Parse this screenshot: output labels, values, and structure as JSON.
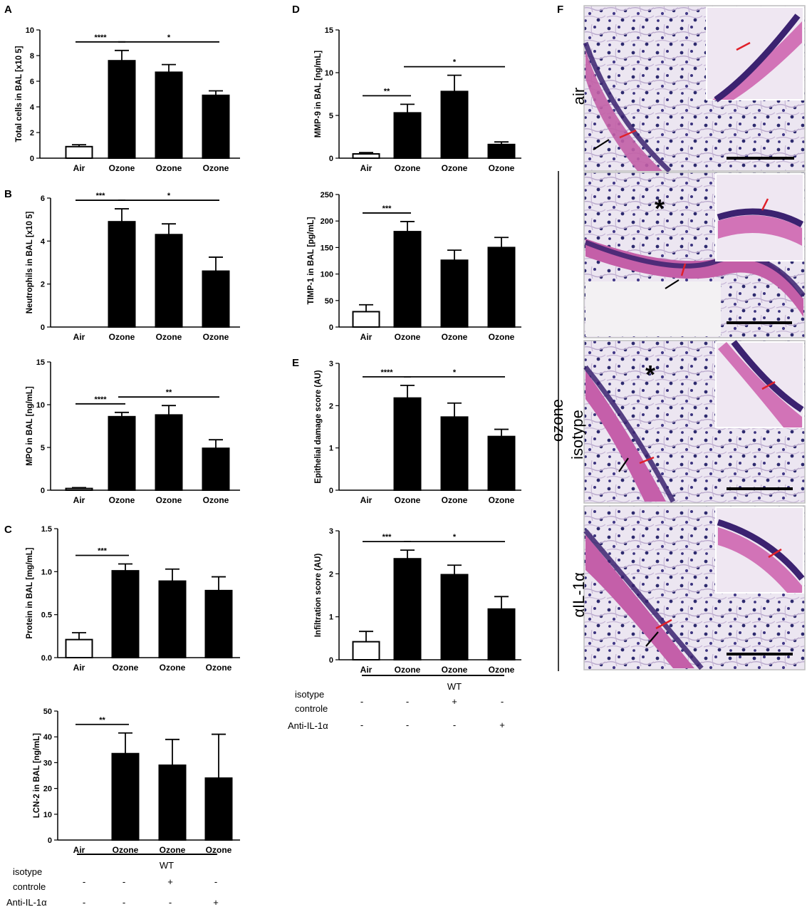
{
  "panels": {
    "A": "A",
    "B": "B",
    "C": "C",
    "D": "D",
    "E": "E",
    "F": "F"
  },
  "groups": {
    "group_label": "WT",
    "row1_label": [
      "isotype",
      "controle"
    ],
    "row2_label": "Anti-IL-1α",
    "row1_marks": [
      "-",
      "-",
      "+",
      "-"
    ],
    "row2_marks": [
      "-",
      "-",
      "-",
      "+"
    ]
  },
  "histology": {
    "labels": [
      "air",
      "isotype",
      "αIL-1α"
    ],
    "ozone_label": "ozone"
  },
  "chart_data": [
    {
      "id": "A-total-cells",
      "type": "bar",
      "categories": [
        "Air",
        "Ozone",
        "Ozone",
        "Ozone"
      ],
      "values": [
        0.9,
        7.6,
        6.7,
        4.9
      ],
      "errors": [
        0.15,
        0.8,
        0.6,
        0.35
      ],
      "ylabel": "Total cells in BAL [x10 5]",
      "ylim": [
        0,
        10
      ],
      "yticks": [
        0,
        2,
        4,
        6,
        8,
        10
      ],
      "tick_labels": [
        "0",
        "2",
        "4",
        "6",
        "8",
        "10"
      ],
      "significance": [
        {
          "from": 0,
          "to": 1,
          "label": "****"
        },
        {
          "from": 1,
          "to": 3,
          "label": "*"
        }
      ],
      "fills": [
        "#ffffff",
        "#000000",
        "#000000",
        "#000000"
      ]
    },
    {
      "id": "B-neutrophils",
      "type": "bar",
      "categories": [
        "Air",
        "Ozone",
        "Ozone",
        "Ozone"
      ],
      "values": [
        0,
        4.9,
        4.3,
        2.6
      ],
      "errors": [
        0,
        0.6,
        0.5,
        0.65
      ],
      "ylabel": "Neutrophils in BAL [x10 5]",
      "ylim": [
        0,
        6
      ],
      "yticks": [
        0,
        2,
        4,
        6
      ],
      "tick_labels": [
        "0",
        "2",
        "4",
        "6"
      ],
      "significance": [
        {
          "from": 0,
          "to": 1,
          "label": "***"
        },
        {
          "from": 1,
          "to": 3,
          "label": "*"
        }
      ],
      "fills": [
        "#ffffff",
        "#000000",
        "#000000",
        "#000000"
      ]
    },
    {
      "id": "B-mpo",
      "type": "bar",
      "categories": [
        "Air",
        "Ozone",
        "Ozone",
        "Ozone"
      ],
      "values": [
        0.2,
        8.6,
        8.8,
        4.9
      ],
      "errors": [
        0.1,
        0.5,
        1.1,
        1.0
      ],
      "ylabel": "MPO in BAL [ng/mL]",
      "ylim": [
        0,
        15
      ],
      "yticks": [
        0,
        5,
        10,
        15
      ],
      "tick_labels": [
        "0",
        "5",
        "10",
        "15"
      ],
      "significance": [
        {
          "from": 0,
          "to": 1,
          "label": "****"
        },
        {
          "from": 1,
          "to": 3,
          "label": "**"
        }
      ],
      "fills": [
        "#ffffff",
        "#000000",
        "#000000",
        "#000000"
      ]
    },
    {
      "id": "C-protein",
      "type": "bar",
      "categories": [
        "Air",
        "Ozone",
        "Ozone",
        "Ozone"
      ],
      "values": [
        0.21,
        1.01,
        0.89,
        0.78
      ],
      "errors": [
        0.08,
        0.08,
        0.14,
        0.16
      ],
      "ylabel": "Protein in BAL [mg/mL]",
      "ylim": [
        0,
        1.5
      ],
      "yticks": [
        0,
        0.5,
        1.0,
        1.5
      ],
      "tick_labels": [
        "0.0",
        "0.5",
        "1.0",
        "1.5"
      ],
      "significance": [
        {
          "from": 0,
          "to": 1,
          "label": "***"
        }
      ],
      "fills": [
        "#ffffff",
        "#000000",
        "#000000",
        "#000000"
      ]
    },
    {
      "id": "C-lcn2",
      "type": "bar",
      "categories": [
        "Air",
        "Ozone",
        "Ozone",
        "Ozone"
      ],
      "values": [
        0,
        33.5,
        29,
        24
      ],
      "errors": [
        0,
        8,
        10,
        17
      ],
      "ylabel": "LCN-2 in BAL [ng/mL]",
      "ylim": [
        0,
        50
      ],
      "yticks": [
        0,
        10,
        20,
        30,
        40,
        50
      ],
      "tick_labels": [
        "0",
        "10",
        "20",
        "30",
        "40",
        "50"
      ],
      "significance": [
        {
          "from": 0,
          "to": 1,
          "label": "**"
        }
      ],
      "fills": [
        "#ffffff",
        "#000000",
        "#000000",
        "#000000"
      ]
    },
    {
      "id": "D-mmp9",
      "type": "bar",
      "categories": [
        "Air",
        "Ozone",
        "Ozone",
        "Ozone"
      ],
      "values": [
        0.5,
        5.3,
        7.8,
        1.6
      ],
      "errors": [
        0.15,
        1.0,
        1.9,
        0.3
      ],
      "ylabel": "MMP-9 in BAL [ng/mL]",
      "ylim": [
        0,
        15
      ],
      "yticks": [
        0,
        5,
        10,
        15
      ],
      "tick_labels": [
        "0",
        "5",
        "10",
        "15"
      ],
      "significance": [
        {
          "from": 0,
          "to": 1,
          "label": "**"
        },
        {
          "from": 1,
          "to": 3,
          "label": "*"
        }
      ],
      "fills": [
        "#ffffff",
        "#000000",
        "#000000",
        "#000000"
      ]
    },
    {
      "id": "D-timp1",
      "type": "bar",
      "categories": [
        "Air",
        "Ozone",
        "Ozone",
        "Ozone"
      ],
      "values": [
        29,
        180,
        126,
        150
      ],
      "errors": [
        13,
        19,
        19,
        19
      ],
      "ylabel": "TIMP-1 in BAL [pg/mL]",
      "ylim": [
        0,
        250
      ],
      "yticks": [
        0,
        50,
        100,
        150,
        200,
        250
      ],
      "tick_labels": [
        "0",
        "50",
        "100",
        "150",
        "200",
        "250"
      ],
      "significance": [
        {
          "from": 0,
          "to": 1,
          "label": "***"
        }
      ],
      "fills": [
        "#ffffff",
        "#000000",
        "#000000",
        "#000000"
      ]
    },
    {
      "id": "E-epithelial",
      "type": "bar",
      "categories": [
        "Air",
        "Ozone",
        "Ozone",
        "Ozone"
      ],
      "values": [
        0,
        2.18,
        1.73,
        1.27
      ],
      "errors": [
        0,
        0.3,
        0.33,
        0.17
      ],
      "ylabel": "Epithelial damage score (AU)",
      "ylim": [
        0,
        3
      ],
      "yticks": [
        0,
        1,
        2,
        3
      ],
      "tick_labels": [
        "0",
        "1",
        "2",
        "3"
      ],
      "significance": [
        {
          "from": 0,
          "to": 1,
          "label": "****"
        },
        {
          "from": 1,
          "to": 3,
          "label": "*"
        }
      ],
      "fills": [
        "#ffffff",
        "#000000",
        "#000000",
        "#000000"
      ]
    },
    {
      "id": "E-infiltration",
      "type": "bar",
      "categories": [
        "Air",
        "Ozone",
        "Ozone",
        "Ozone"
      ],
      "values": [
        0.42,
        2.35,
        1.98,
        1.18
      ],
      "errors": [
        0.24,
        0.2,
        0.22,
        0.29
      ],
      "ylabel": "Infiltration score (AU)",
      "ylim": [
        0,
        3
      ],
      "yticks": [
        0,
        1,
        2,
        3
      ],
      "tick_labels": [
        "0",
        "1",
        "2",
        "3"
      ],
      "significance": [
        {
          "from": 0,
          "to": 1,
          "label": "***"
        },
        {
          "from": 1,
          "to": 3,
          "label": "*"
        }
      ],
      "fills": [
        "#ffffff",
        "#000000",
        "#000000",
        "#000000"
      ]
    }
  ]
}
